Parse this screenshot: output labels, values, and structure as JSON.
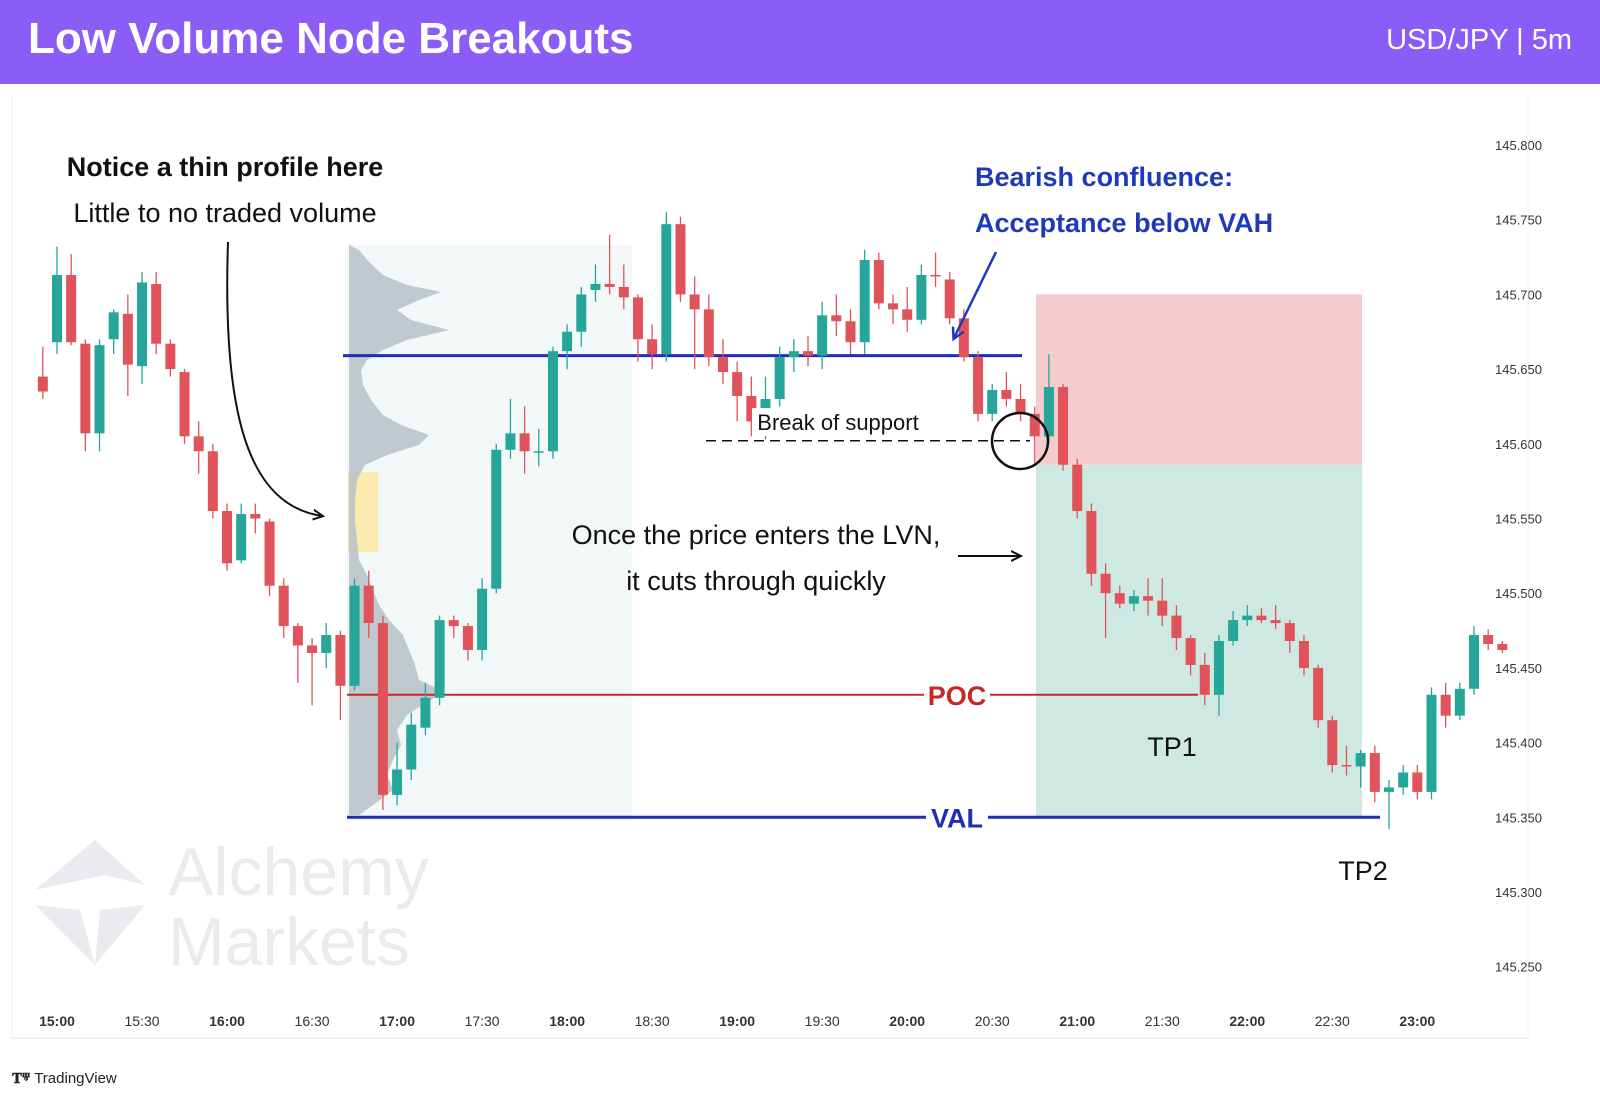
{
  "header": {
    "title": "Low Volume Node Breakouts",
    "pair": "USD/JPY | 5m",
    "bg_color": "#8b5cf6"
  },
  "branding": {
    "tradingview": "TradingView",
    "watermark_line1": "Alchemy",
    "watermark_line2": "Markets"
  },
  "annotations": {
    "thin_profile_title": "Notice a thin profile here",
    "thin_profile_sub": "Little to no traded volume",
    "bearish_line1": "Bearish confluence:",
    "bearish_line2": "Acceptance below VAH",
    "break_support": "Break of support",
    "lvn_line1": "Once the price enters the LVN,",
    "lvn_line2": "it cuts through quickly",
    "poc": "POC",
    "val": "VAL",
    "tp1": "TP1",
    "tp2": "TP2"
  },
  "colors": {
    "bull": "#26a69a",
    "bear": "#e0535a",
    "vah_line": "#1e2fb5",
    "poc_line": "#c62828",
    "stop_zone": "#f4c6c9",
    "target_zone": "#c9e6df",
    "profile": "#b7c1c6",
    "lvn_highlight": "#fbe8a6",
    "annotation_blue": "#1e3ab8"
  },
  "chart_data": {
    "type": "candlestick",
    "timeframe": "5m",
    "x_ticks": [
      "15:00",
      "15:30",
      "16:00",
      "16:30",
      "17:00",
      "17:30",
      "18:00",
      "18:30",
      "19:00",
      "19:30",
      "20:00",
      "20:30",
      "21:00",
      "21:30",
      "22:00",
      "22:30",
      "23:00"
    ],
    "y_ticks": [
      "145.800",
      "145.750",
      "145.700",
      "145.650",
      "145.600",
      "145.550",
      "145.500",
      "145.450",
      "145.400",
      "145.350",
      "145.300",
      "145.250"
    ],
    "ylim": [
      145.215,
      145.83
    ],
    "levels": {
      "vah": 145.659,
      "poc": 145.432,
      "val": 145.35,
      "support": 145.602
    },
    "trade_zones": {
      "entry": 145.586,
      "stop": 145.7,
      "target": 145.35
    },
    "candles": [
      {
        "t": "14:55",
        "o": 145.645,
        "h": 145.665,
        "l": 145.63,
        "c": 145.635
      },
      {
        "t": "15:00",
        "o": 145.668,
        "h": 145.732,
        "l": 145.66,
        "c": 145.713
      },
      {
        "t": "15:05",
        "o": 145.713,
        "h": 145.727,
        "l": 145.666,
        "c": 145.668
      },
      {
        "t": "15:10",
        "o": 145.667,
        "h": 145.67,
        "l": 145.595,
        "c": 145.607
      },
      {
        "t": "15:15",
        "o": 145.607,
        "h": 145.67,
        "l": 145.595,
        "c": 145.666
      },
      {
        "t": "15:20",
        "o": 145.67,
        "h": 145.69,
        "l": 145.66,
        "c": 145.688
      },
      {
        "t": "15:25",
        "o": 145.687,
        "h": 145.7,
        "l": 145.632,
        "c": 145.653
      },
      {
        "t": "15:30",
        "o": 145.652,
        "h": 145.715,
        "l": 145.64,
        "c": 145.708
      },
      {
        "t": "15:35",
        "o": 145.707,
        "h": 145.715,
        "l": 145.66,
        "c": 145.667
      },
      {
        "t": "15:40",
        "o": 145.667,
        "h": 145.67,
        "l": 145.645,
        "c": 145.65
      },
      {
        "t": "15:45",
        "o": 145.648,
        "h": 145.65,
        "l": 145.6,
        "c": 145.605
      },
      {
        "t": "15:50",
        "o": 145.605,
        "h": 145.615,
        "l": 145.58,
        "c": 145.595
      },
      {
        "t": "15:55",
        "o": 145.595,
        "h": 145.6,
        "l": 145.55,
        "c": 145.555
      },
      {
        "t": "16:00",
        "o": 145.555,
        "h": 145.56,
        "l": 145.515,
        "c": 145.52
      },
      {
        "t": "16:05",
        "o": 145.522,
        "h": 145.56,
        "l": 145.52,
        "c": 145.553
      },
      {
        "t": "16:10",
        "o": 145.553,
        "h": 145.56,
        "l": 145.54,
        "c": 145.55
      },
      {
        "t": "16:15",
        "o": 145.548,
        "h": 145.55,
        "l": 145.498,
        "c": 145.505
      },
      {
        "t": "16:20",
        "o": 145.505,
        "h": 145.51,
        "l": 145.47,
        "c": 145.478
      },
      {
        "t": "16:25",
        "o": 145.478,
        "h": 145.48,
        "l": 145.44,
        "c": 145.465
      },
      {
        "t": "16:30",
        "o": 145.465,
        "h": 145.47,
        "l": 145.425,
        "c": 145.46
      },
      {
        "t": "16:35",
        "o": 145.46,
        "h": 145.48,
        "l": 145.45,
        "c": 145.472
      },
      {
        "t": "16:40",
        "o": 145.472,
        "h": 145.475,
        "l": 145.415,
        "c": 145.438
      },
      {
        "t": "16:45",
        "o": 145.438,
        "h": 145.51,
        "l": 145.435,
        "c": 145.505
      },
      {
        "t": "16:50",
        "o": 145.505,
        "h": 145.515,
        "l": 145.47,
        "c": 145.48
      },
      {
        "t": "16:55",
        "o": 145.48,
        "h": 145.485,
        "l": 145.355,
        "c": 145.365
      },
      {
        "t": "17:00",
        "o": 145.365,
        "h": 145.4,
        "l": 145.358,
        "c": 145.382
      },
      {
        "t": "17:05",
        "o": 145.382,
        "h": 145.42,
        "l": 145.375,
        "c": 145.412
      },
      {
        "t": "17:10",
        "o": 145.41,
        "h": 145.44,
        "l": 145.405,
        "c": 145.43
      },
      {
        "t": "17:15",
        "o": 145.43,
        "h": 145.485,
        "l": 145.425,
        "c": 145.482
      },
      {
        "t": "17:20",
        "o": 145.482,
        "h": 145.485,
        "l": 145.47,
        "c": 145.478
      },
      {
        "t": "17:25",
        "o": 145.478,
        "h": 145.48,
        "l": 145.455,
        "c": 145.462
      },
      {
        "t": "17:30",
        "o": 145.462,
        "h": 145.51,
        "l": 145.455,
        "c": 145.503
      },
      {
        "t": "17:35",
        "o": 145.503,
        "h": 145.6,
        "l": 145.5,
        "c": 145.596
      },
      {
        "t": "17:40",
        "o": 145.596,
        "h": 145.63,
        "l": 145.59,
        "c": 145.607
      },
      {
        "t": "17:45",
        "o": 145.607,
        "h": 145.625,
        "l": 145.58,
        "c": 145.595
      },
      {
        "t": "17:50",
        "o": 145.595,
        "h": 145.61,
        "l": 145.585,
        "c": 145.595
      },
      {
        "t": "17:55",
        "o": 145.595,
        "h": 145.665,
        "l": 145.59,
        "c": 145.662
      },
      {
        "t": "18:00",
        "o": 145.662,
        "h": 145.68,
        "l": 145.65,
        "c": 145.675
      },
      {
        "t": "18:05",
        "o": 145.675,
        "h": 145.705,
        "l": 145.665,
        "c": 145.7
      },
      {
        "t": "18:10",
        "o": 145.703,
        "h": 145.72,
        "l": 145.695,
        "c": 145.707
      },
      {
        "t": "18:15",
        "o": 145.707,
        "h": 145.74,
        "l": 145.7,
        "c": 145.705
      },
      {
        "t": "18:20",
        "o": 145.705,
        "h": 145.72,
        "l": 145.69,
        "c": 145.698
      },
      {
        "t": "18:25",
        "o": 145.698,
        "h": 145.7,
        "l": 145.655,
        "c": 145.67
      },
      {
        "t": "18:30",
        "o": 145.67,
        "h": 145.68,
        "l": 145.65,
        "c": 145.66
      },
      {
        "t": "18:35",
        "o": 145.66,
        "h": 145.755,
        "l": 145.655,
        "c": 145.747
      },
      {
        "t": "18:40",
        "o": 145.747,
        "h": 145.752,
        "l": 145.695,
        "c": 145.7
      },
      {
        "t": "18:45",
        "o": 145.7,
        "h": 145.712,
        "l": 145.65,
        "c": 145.69
      },
      {
        "t": "18:50",
        "o": 145.69,
        "h": 145.7,
        "l": 145.652,
        "c": 145.658
      },
      {
        "t": "18:55",
        "o": 145.658,
        "h": 145.67,
        "l": 145.64,
        "c": 145.648
      },
      {
        "t": "19:00",
        "o": 145.648,
        "h": 145.655,
        "l": 145.615,
        "c": 145.632
      },
      {
        "t": "19:05",
        "o": 145.632,
        "h": 145.645,
        "l": 145.605,
        "c": 145.615
      },
      {
        "t": "19:10",
        "o": 145.615,
        "h": 145.645,
        "l": 145.603,
        "c": 145.63
      },
      {
        "t": "19:15",
        "o": 145.63,
        "h": 145.665,
        "l": 145.625,
        "c": 145.658
      },
      {
        "t": "19:20",
        "o": 145.658,
        "h": 145.67,
        "l": 145.648,
        "c": 145.662
      },
      {
        "t": "19:25",
        "o": 145.662,
        "h": 145.672,
        "l": 145.652,
        "c": 145.659
      },
      {
        "t": "19:30",
        "o": 145.659,
        "h": 145.695,
        "l": 145.65,
        "c": 145.686
      },
      {
        "t": "19:35",
        "o": 145.686,
        "h": 145.7,
        "l": 145.672,
        "c": 145.682
      },
      {
        "t": "19:40",
        "o": 145.682,
        "h": 145.69,
        "l": 145.66,
        "c": 145.668
      },
      {
        "t": "19:45",
        "o": 145.668,
        "h": 145.73,
        "l": 145.66,
        "c": 145.723
      },
      {
        "t": "19:50",
        "o": 145.723,
        "h": 145.728,
        "l": 145.69,
        "c": 145.694
      },
      {
        "t": "19:55",
        "o": 145.694,
        "h": 145.7,
        "l": 145.68,
        "c": 145.69
      },
      {
        "t": "20:00",
        "o": 145.69,
        "h": 145.705,
        "l": 145.675,
        "c": 145.683
      },
      {
        "t": "20:05",
        "o": 145.683,
        "h": 145.72,
        "l": 145.68,
        "c": 145.713
      },
      {
        "t": "20:10",
        "o": 145.713,
        "h": 145.728,
        "l": 145.705,
        "c": 145.712
      },
      {
        "t": "20:15",
        "o": 145.71,
        "h": 145.715,
        "l": 145.68,
        "c": 145.684
      },
      {
        "t": "20:20",
        "o": 145.684,
        "h": 145.69,
        "l": 145.655,
        "c": 145.658
      },
      {
        "t": "20:25",
        "o": 145.658,
        "h": 145.662,
        "l": 145.615,
        "c": 145.62
      },
      {
        "t": "20:30",
        "o": 145.62,
        "h": 145.64,
        "l": 145.615,
        "c": 145.636
      },
      {
        "t": "20:35",
        "o": 145.636,
        "h": 145.648,
        "l": 145.625,
        "c": 145.63
      },
      {
        "t": "20:40",
        "o": 145.63,
        "h": 145.64,
        "l": 145.615,
        "c": 145.62
      },
      {
        "t": "20:45",
        "o": 145.62,
        "h": 145.625,
        "l": 145.585,
        "c": 145.605
      },
      {
        "t": "20:50",
        "o": 145.605,
        "h": 145.66,
        "l": 145.6,
        "c": 145.638
      },
      {
        "t": "20:55",
        "o": 145.638,
        "h": 145.64,
        "l": 145.582,
        "c": 145.586
      },
      {
        "t": "21:00",
        "o": 145.586,
        "h": 145.59,
        "l": 145.55,
        "c": 145.555
      },
      {
        "t": "21:05",
        "o": 145.555,
        "h": 145.56,
        "l": 145.505,
        "c": 145.513
      },
      {
        "t": "21:10",
        "o": 145.513,
        "h": 145.52,
        "l": 145.47,
        "c": 145.5
      },
      {
        "t": "21:15",
        "o": 145.5,
        "h": 145.505,
        "l": 145.49,
        "c": 145.493
      },
      {
        "t": "21:20",
        "o": 145.493,
        "h": 145.502,
        "l": 145.488,
        "c": 145.498
      },
      {
        "t": "21:25",
        "o": 145.498,
        "h": 145.51,
        "l": 145.485,
        "c": 145.495
      },
      {
        "t": "21:30",
        "o": 145.495,
        "h": 145.51,
        "l": 145.478,
        "c": 145.485
      },
      {
        "t": "21:35",
        "o": 145.485,
        "h": 145.492,
        "l": 145.462,
        "c": 145.47
      },
      {
        "t": "21:40",
        "o": 145.47,
        "h": 145.472,
        "l": 145.445,
        "c": 145.452
      },
      {
        "t": "21:45",
        "o": 145.452,
        "h": 145.46,
        "l": 145.425,
        "c": 145.432
      },
      {
        "t": "21:50",
        "o": 145.432,
        "h": 145.472,
        "l": 145.418,
        "c": 145.468
      },
      {
        "t": "21:55",
        "o": 145.468,
        "h": 145.488,
        "l": 145.465,
        "c": 145.482
      },
      {
        "t": "22:00",
        "o": 145.482,
        "h": 145.492,
        "l": 145.478,
        "c": 145.485
      },
      {
        "t": "22:05",
        "o": 145.485,
        "h": 145.49,
        "l": 145.48,
        "c": 145.482
      },
      {
        "t": "22:10",
        "o": 145.482,
        "h": 145.492,
        "l": 145.476,
        "c": 145.48
      },
      {
        "t": "22:15",
        "o": 145.48,
        "h": 145.482,
        "l": 145.46,
        "c": 145.468
      },
      {
        "t": "22:20",
        "o": 145.468,
        "h": 145.472,
        "l": 145.445,
        "c": 145.45
      },
      {
        "t": "22:25",
        "o": 145.45,
        "h": 145.452,
        "l": 145.41,
        "c": 145.415
      },
      {
        "t": "22:30",
        "o": 145.415,
        "h": 145.418,
        "l": 145.38,
        "c": 145.385
      },
      {
        "t": "22:35",
        "o": 145.385,
        "h": 145.398,
        "l": 145.378,
        "c": 145.384
      },
      {
        "t": "22:40",
        "o": 145.384,
        "h": 145.395,
        "l": 145.37,
        "c": 145.393
      },
      {
        "t": "22:45",
        "o": 145.393,
        "h": 145.398,
        "l": 145.36,
        "c": 145.367
      },
      {
        "t": "22:50",
        "o": 145.367,
        "h": 145.375,
        "l": 145.342,
        "c": 145.37
      },
      {
        "t": "22:55",
        "o": 145.37,
        "h": 145.385,
        "l": 145.365,
        "c": 145.38
      },
      {
        "t": "23:00",
        "o": 145.38,
        "h": 145.385,
        "l": 145.362,
        "c": 145.367
      },
      {
        "t": "23:05",
        "o": 145.367,
        "h": 145.437,
        "l": 145.362,
        "c": 145.432
      },
      {
        "t": "23:10",
        "o": 145.432,
        "h": 145.44,
        "l": 145.41,
        "c": 145.418
      },
      {
        "t": "23:15",
        "o": 145.418,
        "h": 145.44,
        "l": 145.415,
        "c": 145.436
      },
      {
        "t": "23:20",
        "o": 145.436,
        "h": 145.478,
        "l": 145.432,
        "c": 145.472
      },
      {
        "t": "23:25",
        "o": 145.472,
        "h": 145.476,
        "l": 145.462,
        "c": 145.466
      },
      {
        "t": "23:30",
        "o": 145.466,
        "h": 145.468,
        "l": 145.46,
        "c": 145.462
      }
    ]
  }
}
